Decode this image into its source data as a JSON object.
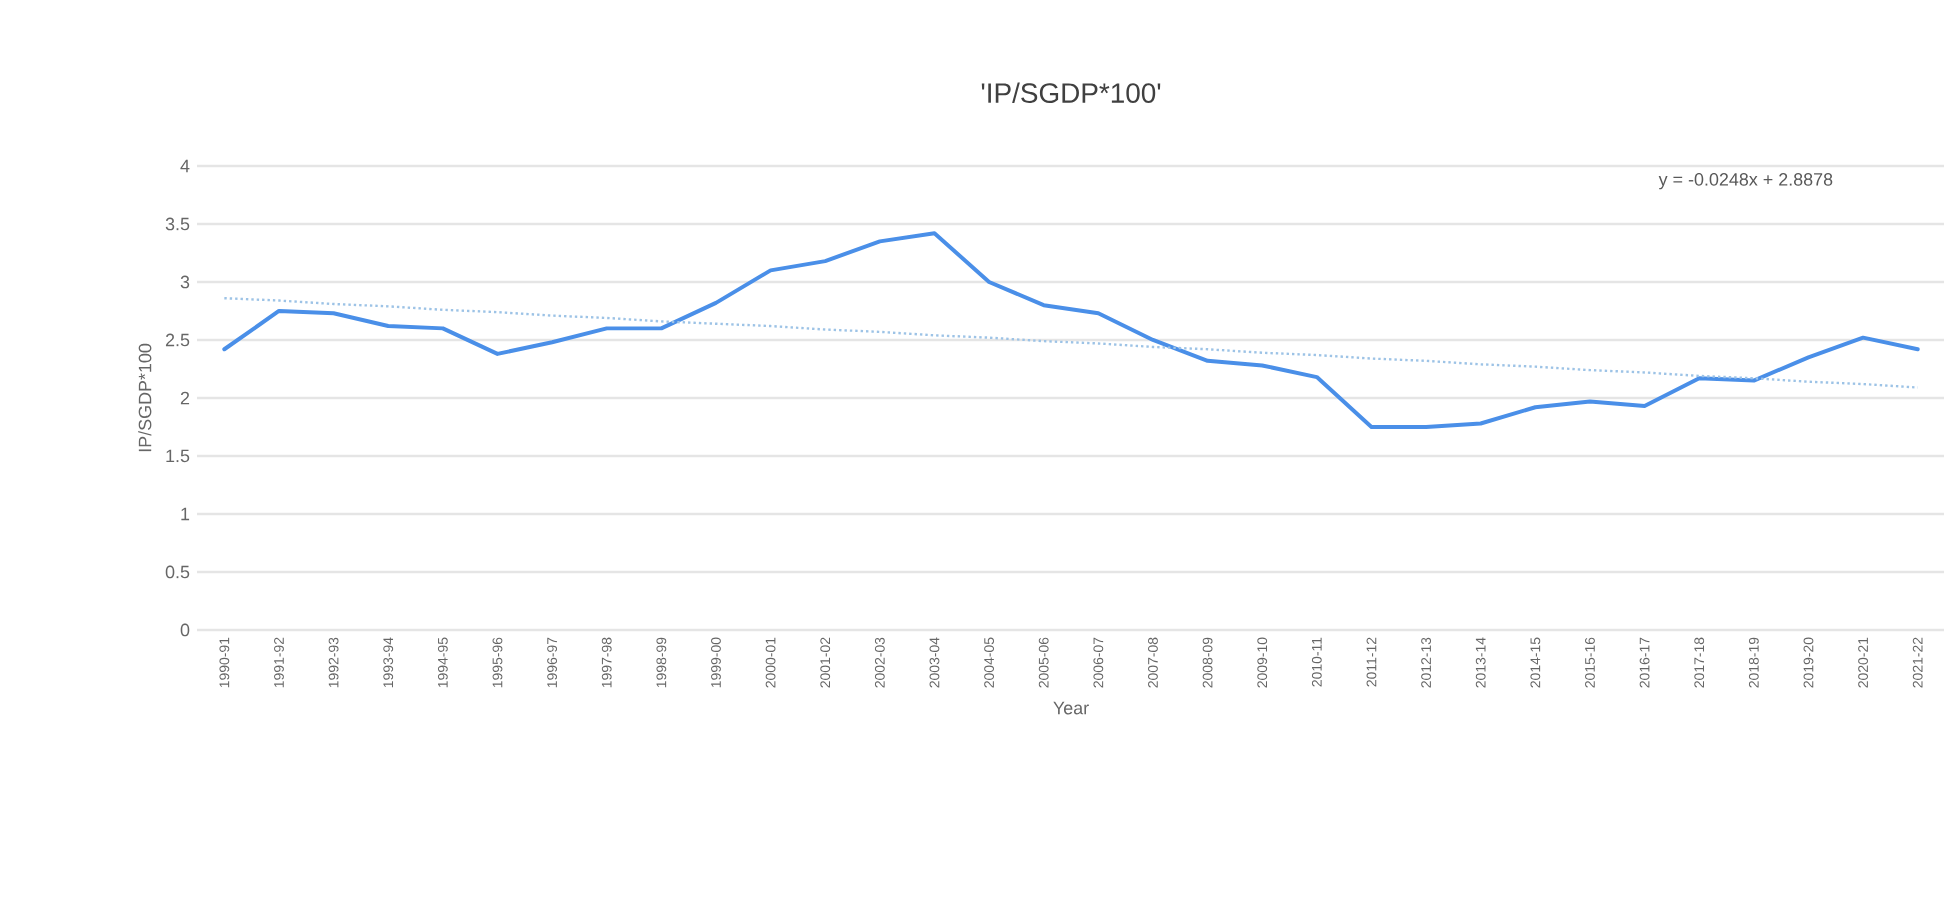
{
  "chart_data": {
    "type": "line",
    "title": "'IP/SGDP*100'",
    "xlabel": "Year",
    "ylabel": "IP/SGDP*100",
    "categories": [
      "1990-91",
      "1991-92",
      "1992-93",
      "1993-94",
      "1994-95",
      "1995-96",
      "1996-97",
      "1997-98",
      "1998-99",
      "1999-00",
      "2000-01",
      "2001-02",
      "2002-03",
      "2003-04",
      "2004-05",
      "2005-06",
      "2006-07",
      "2007-08",
      "2008-09",
      "2009-10",
      "2010-11",
      "2011-12",
      "2012-13",
      "2013-14",
      "2014-15",
      "2015-16",
      "2016-17",
      "2017-18",
      "2018-19",
      "2019-20",
      "2020-21",
      "2021-22"
    ],
    "series": [
      {
        "color": "#4a8fe8",
        "line_style": "solid",
        "values": [
          2.42,
          2.75,
          2.73,
          2.62,
          2.6,
          2.38,
          2.48,
          2.6,
          2.6,
          2.82,
          3.1,
          3.18,
          3.35,
          3.42,
          3.0,
          2.8,
          2.73,
          2.5,
          2.32,
          2.28,
          2.18,
          1.75,
          1.75,
          1.78,
          1.92,
          1.97,
          1.93,
          2.17,
          2.15,
          2.35,
          2.52,
          2.42
        ]
      },
      {
        "color": "#9dc3e6",
        "line_style": "dotted",
        "values": [
          2.86,
          2.84,
          2.81,
          2.79,
          2.76,
          2.74,
          2.71,
          2.69,
          2.66,
          2.64,
          2.62,
          2.59,
          2.57,
          2.54,
          2.52,
          2.49,
          2.47,
          2.44,
          2.42,
          2.39,
          2.37,
          2.34,
          2.32,
          2.29,
          2.27,
          2.24,
          2.22,
          2.19,
          2.17,
          2.14,
          2.12,
          2.09
        ]
      }
    ],
    "annotations": [
      "y = -0.0248x + 2.8878"
    ],
    "ylim": [
      0,
      4
    ],
    "yticks": [
      0,
      0.5,
      1,
      1.5,
      2,
      2.5,
      3,
      3.5,
      4
    ],
    "grid": "y",
    "marker": "none"
  }
}
